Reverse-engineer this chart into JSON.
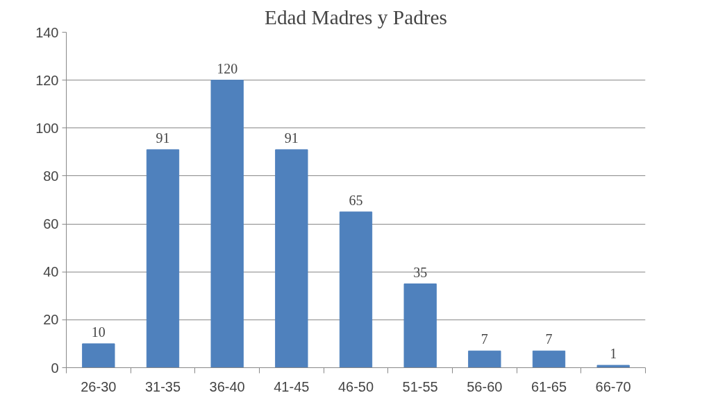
{
  "chart_data": {
    "type": "bar",
    "title": "Edad Madres y Padres",
    "categories": [
      "26-30",
      "31-35",
      "36-40",
      "41-45",
      "46-50",
      "51-55",
      "56-60",
      "61-65",
      "66-70"
    ],
    "values": [
      10,
      91,
      120,
      91,
      65,
      35,
      7,
      7,
      1
    ],
    "color": "#4f81bd",
    "ylim": [
      0,
      140
    ],
    "yticks": [
      0,
      20,
      40,
      60,
      80,
      100,
      120,
      140
    ],
    "grid": "y",
    "data_labels": true
  }
}
